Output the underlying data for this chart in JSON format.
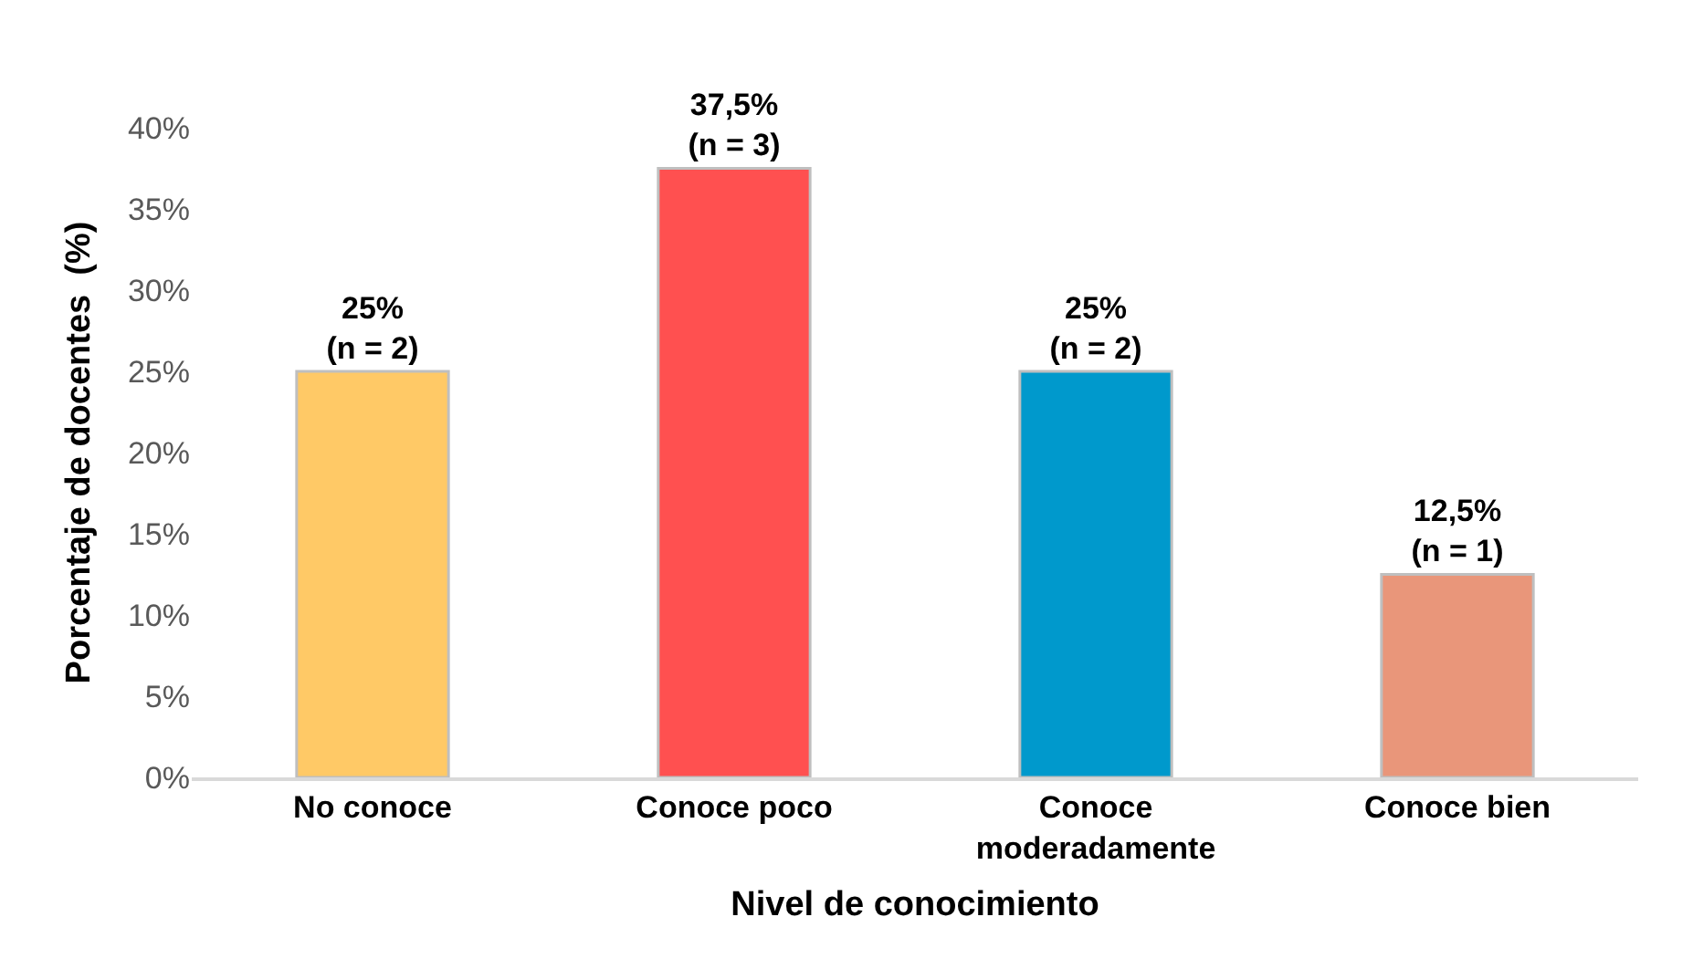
{
  "chart_data": {
    "type": "bar",
    "xlabel": "Nivel de conocimiento",
    "ylabel": "Porcentaje de docentes  (%)",
    "categories": [
      "No conoce",
      "Conoce poco",
      "Conoce moderadamente",
      "Conoce bien"
    ],
    "values": [
      25,
      37.5,
      25,
      12.5
    ],
    "colors": [
      "#ffc966",
      "#ff5050",
      "#0099cc",
      "#e9967a"
    ],
    "value_labels": [
      "25%\n(n = 2)",
      "37,5%\n(n = 3)",
      "25%\n(n = 2)",
      "12,5%\n(n = 1)"
    ],
    "ylim": [
      0,
      40
    ],
    "yticks": [
      {
        "value": 0,
        "label": "0%"
      },
      {
        "value": 5,
        "label": "5%"
      },
      {
        "value": 10,
        "label": "10%"
      },
      {
        "value": 15,
        "label": "15%"
      },
      {
        "value": 20,
        "label": "20%"
      },
      {
        "value": 25,
        "label": "25%"
      },
      {
        "value": 30,
        "label": "30%"
      },
      {
        "value": 35,
        "label": "35%"
      },
      {
        "value": 40,
        "label": "40%"
      }
    ],
    "legend": false
  }
}
